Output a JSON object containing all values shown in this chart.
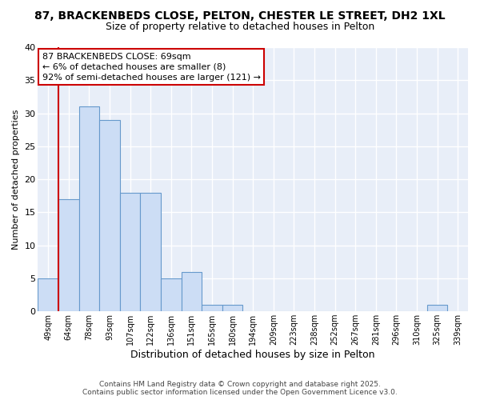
{
  "title1": "87, BRACKENBEDS CLOSE, PELTON, CHESTER LE STREET, DH2 1XL",
  "title2": "Size of property relative to detached houses in Pelton",
  "xlabel": "Distribution of detached houses by size in Pelton",
  "ylabel": "Number of detached properties",
  "categories": [
    "49sqm",
    "64sqm",
    "78sqm",
    "93sqm",
    "107sqm",
    "122sqm",
    "136sqm",
    "151sqm",
    "165sqm",
    "180sqm",
    "194sqm",
    "209sqm",
    "223sqm",
    "238sqm",
    "252sqm",
    "267sqm",
    "281sqm",
    "296sqm",
    "310sqm",
    "325sqm",
    "339sqm"
  ],
  "values": [
    5,
    17,
    31,
    29,
    18,
    18,
    5,
    6,
    1,
    1,
    0,
    0,
    0,
    0,
    0,
    0,
    0,
    0,
    0,
    1,
    0
  ],
  "bar_color": "#ccddf5",
  "bar_edge_color": "#6699cc",
  "vline_color": "#cc0000",
  "ylim": [
    0,
    40
  ],
  "yticks": [
    0,
    5,
    10,
    15,
    20,
    25,
    30,
    35,
    40
  ],
  "annotation_line1": "87 BRACKENBEDS CLOSE: 69sqm",
  "annotation_line2": "← 6% of detached houses are smaller (8)",
  "annotation_line3": "92% of semi-detached houses are larger (121) →",
  "annotation_box_color": "white",
  "annotation_box_edge": "#cc0000",
  "footer1": "Contains HM Land Registry data © Crown copyright and database right 2025.",
  "footer2": "Contains public sector information licensed under the Open Government Licence v3.0.",
  "background_color": "#ffffff",
  "plot_bg_color": "#e8eef8"
}
